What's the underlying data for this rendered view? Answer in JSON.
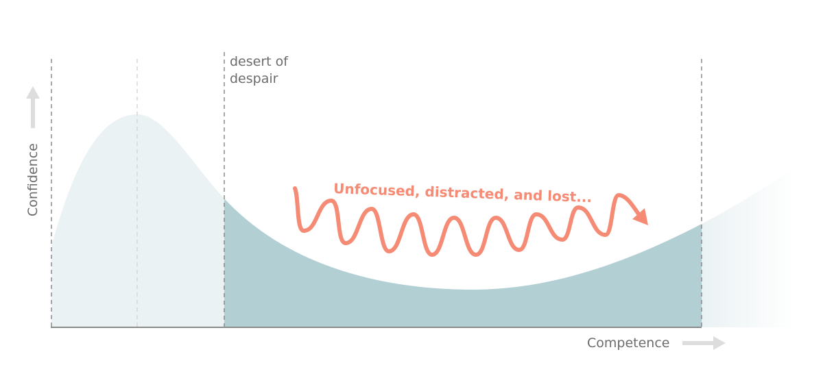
{
  "diagram": {
    "y_axis_label": "Confidence",
    "x_axis_label": "Competence",
    "region_label_line1": "desert of",
    "region_label_line2": "despair",
    "annotation": "Unfocused, distracted, and lost...",
    "colors": {
      "curve_light": "#ebf2f4",
      "curve_dark": "#b2cfd3",
      "annotation": "#f58b74",
      "axis": "#8a8a8a",
      "arrow": "#dddddd",
      "text": "#6b6b6b"
    }
  }
}
